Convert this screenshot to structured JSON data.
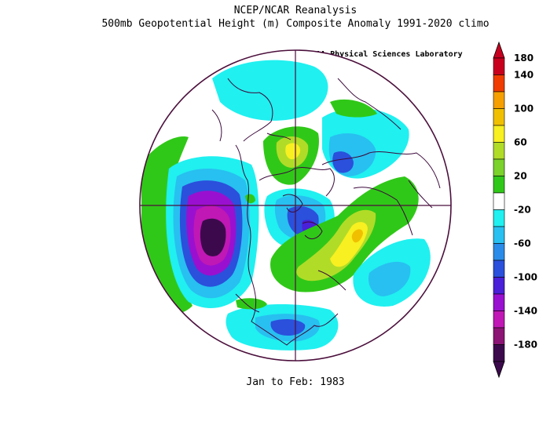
{
  "header": {
    "title": "NCEP/NCAR Reanalysis",
    "subtitle": "500mb Geopotential Height (m) Composite Anomaly 1991-2020 climo",
    "credit": "NOAA Physical Sciences Laboratory"
  },
  "footer": {
    "period": "Jan to Feb: 1983"
  },
  "colorbar": {
    "levels": [
      {
        "label": "180",
        "color": "#c8001e"
      },
      {
        "label": "140",
        "color": "#f03c00"
      },
      {
        "label": "",
        "color": "#f5a000"
      },
      {
        "label": "100",
        "color": "#f0c000"
      },
      {
        "label": "",
        "color": "#f8f020"
      },
      {
        "label": "60",
        "color": "#b0dc28"
      },
      {
        "label": "",
        "color": "#7ad22a"
      },
      {
        "label": "20",
        "color": "#30c818"
      },
      {
        "label": "",
        "color": "#ffffff"
      },
      {
        "label": "-20",
        "color": "#20f0f0"
      },
      {
        "label": "",
        "color": "#28c0f0"
      },
      {
        "label": "-60",
        "color": "#2a8ce8"
      },
      {
        "label": "",
        "color": "#2a50dc"
      },
      {
        "label": "-100",
        "color": "#4a20d8"
      },
      {
        "label": "",
        "color": "#9a10d0"
      },
      {
        "label": "-140",
        "color": "#c018b4"
      },
      {
        "label": "",
        "color": "#8c1474"
      },
      {
        "label": "-180",
        "color": "#3c0a4c"
      }
    ],
    "top_arrow_color": "#c80020",
    "bottom_arrow_color": "#3c0a4c"
  },
  "map_colors": {
    "boundary": "#4b0f3c",
    "coast": "#3c0a3c"
  }
}
